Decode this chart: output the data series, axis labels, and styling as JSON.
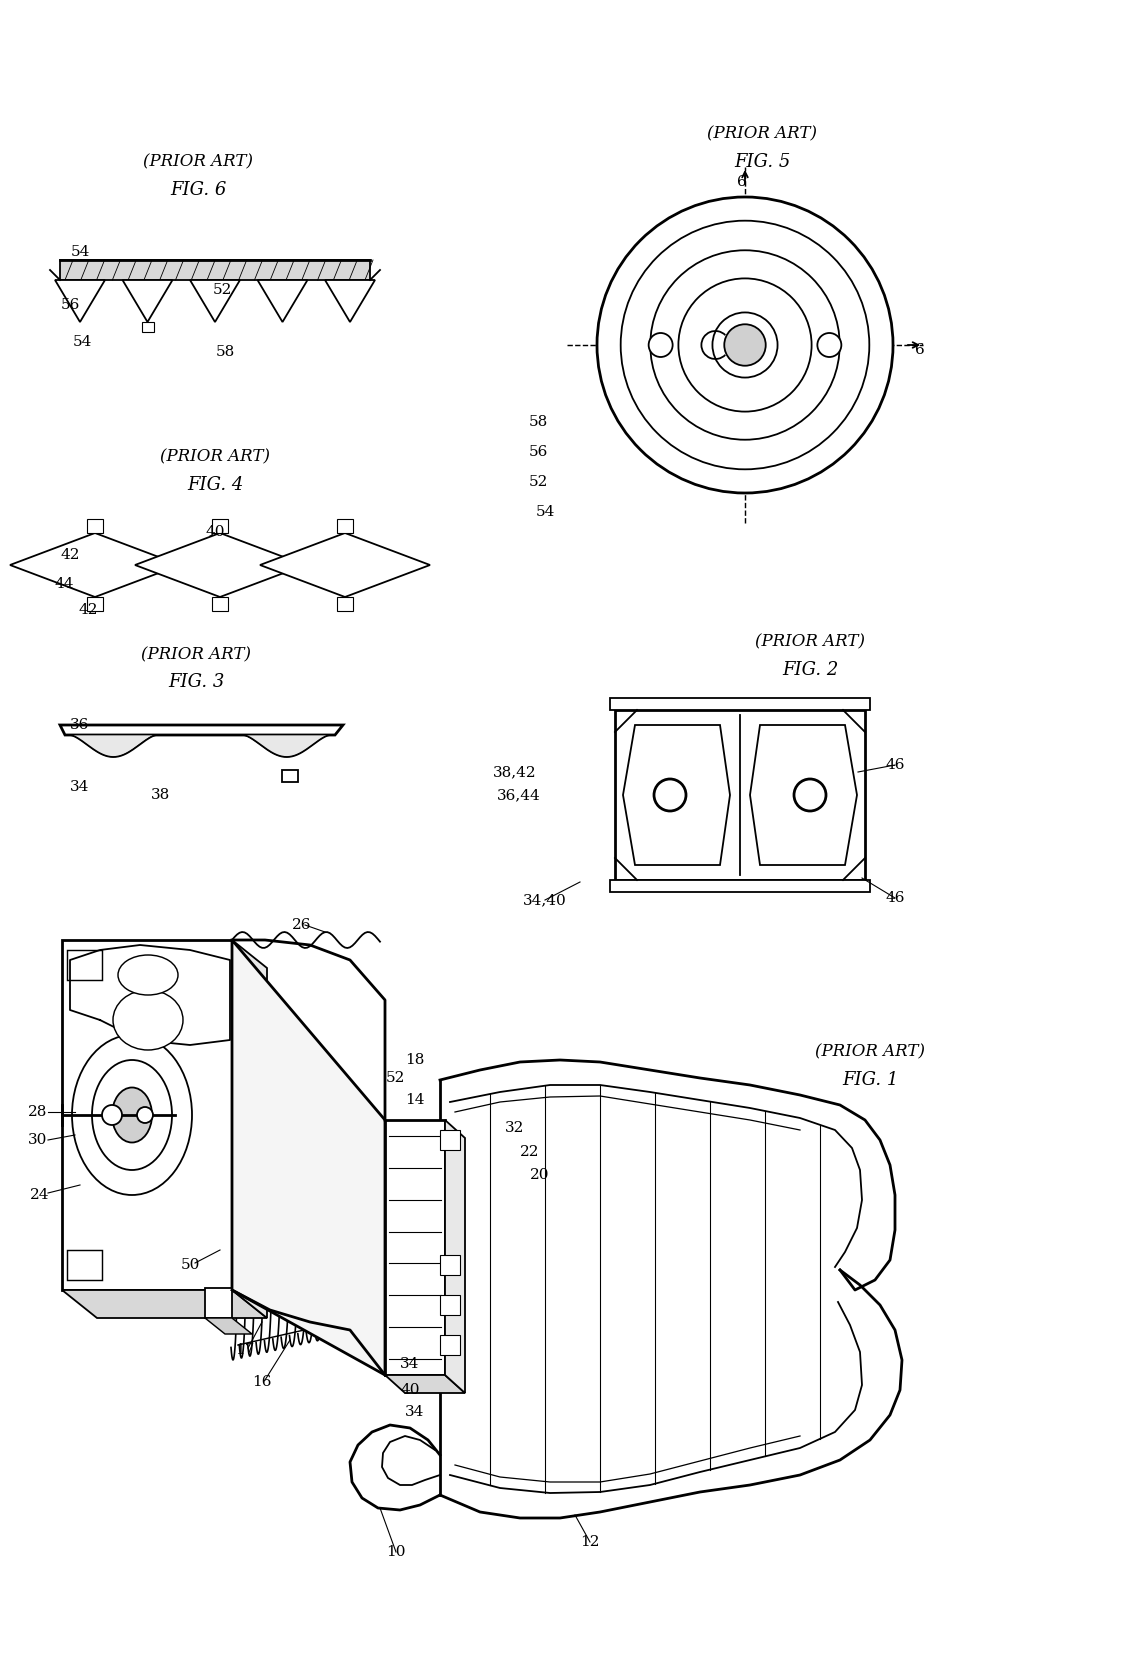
{
  "background_color": "#ffffff",
  "figure_size": [
    11.28,
    16.6
  ],
  "dpi": 100,
  "fig1_label": "FIG. 1",
  "fig1_sub": "(PRIOR ART)",
  "fig2_label": "FIG. 2",
  "fig2_sub": "(PRIOR ART)",
  "fig3_label": "FIG. 3",
  "fig3_sub": "(PRIOR ART)",
  "fig4_label": "FIG. 4",
  "fig4_sub": "(PRIOR ART)",
  "fig5_label": "FIG. 5",
  "fig5_sub": "(PRIOR ART)",
  "fig6_label": "FIG. 6",
  "fig6_sub": "(PRIOR ART)",
  "line_color": "#000000",
  "white": "#ffffff",
  "gray_light": "#e0e0e0"
}
